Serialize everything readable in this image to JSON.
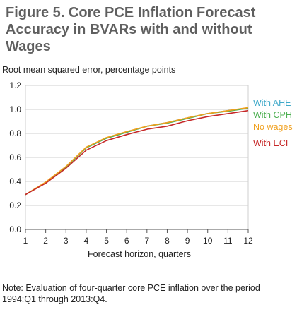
{
  "title_line1": "Figure 5. Core PCE Inflation Forecast",
  "title_line2": "Accuracy in BVARs with and without Wages",
  "note_line1": "Note: Evaluation of four-quarter core PCE inflation over the period",
  "note_line2": "1994:Q1 through 2013:Q4.",
  "chart_data": {
    "type": "line",
    "ylabel": "Root mean squared error, percentage points",
    "xlabel": "Forecast horizon, quarters",
    "x": [
      1,
      2,
      3,
      4,
      5,
      6,
      7,
      8,
      9,
      10,
      11,
      12
    ],
    "xlim": [
      1,
      12
    ],
    "ylim": [
      0,
      1.2
    ],
    "yticks": [
      "0.0",
      "0.2",
      "0.4",
      "0.6",
      "0.8",
      "1.0",
      "1.2"
    ],
    "xticks": [
      "1",
      "2",
      "3",
      "4",
      "5",
      "6",
      "7",
      "8",
      "9",
      "10",
      "11",
      "12"
    ],
    "legend_position": "right",
    "series": [
      {
        "name": "With AHE",
        "color": "#3fa9c9",
        "values": [
          0.29,
          0.39,
          0.52,
          0.68,
          0.76,
          0.81,
          0.86,
          0.89,
          0.93,
          0.965,
          0.99,
          1.01
        ]
      },
      {
        "name": "With CPH",
        "color": "#4caf50",
        "values": [
          0.29,
          0.39,
          0.52,
          0.68,
          0.76,
          0.81,
          0.86,
          0.885,
          0.925,
          0.965,
          0.985,
          1.01
        ]
      },
      {
        "name": "No wages",
        "color": "#f0a01e",
        "values": [
          0.29,
          0.395,
          0.525,
          0.685,
          0.765,
          0.815,
          0.86,
          0.89,
          0.93,
          0.965,
          0.99,
          1.015
        ]
      },
      {
        "name": "With ECI",
        "color": "#c62828",
        "values": [
          0.29,
          0.385,
          0.51,
          0.66,
          0.74,
          0.79,
          0.835,
          0.86,
          0.905,
          0.94,
          0.965,
          0.99
        ]
      }
    ]
  }
}
